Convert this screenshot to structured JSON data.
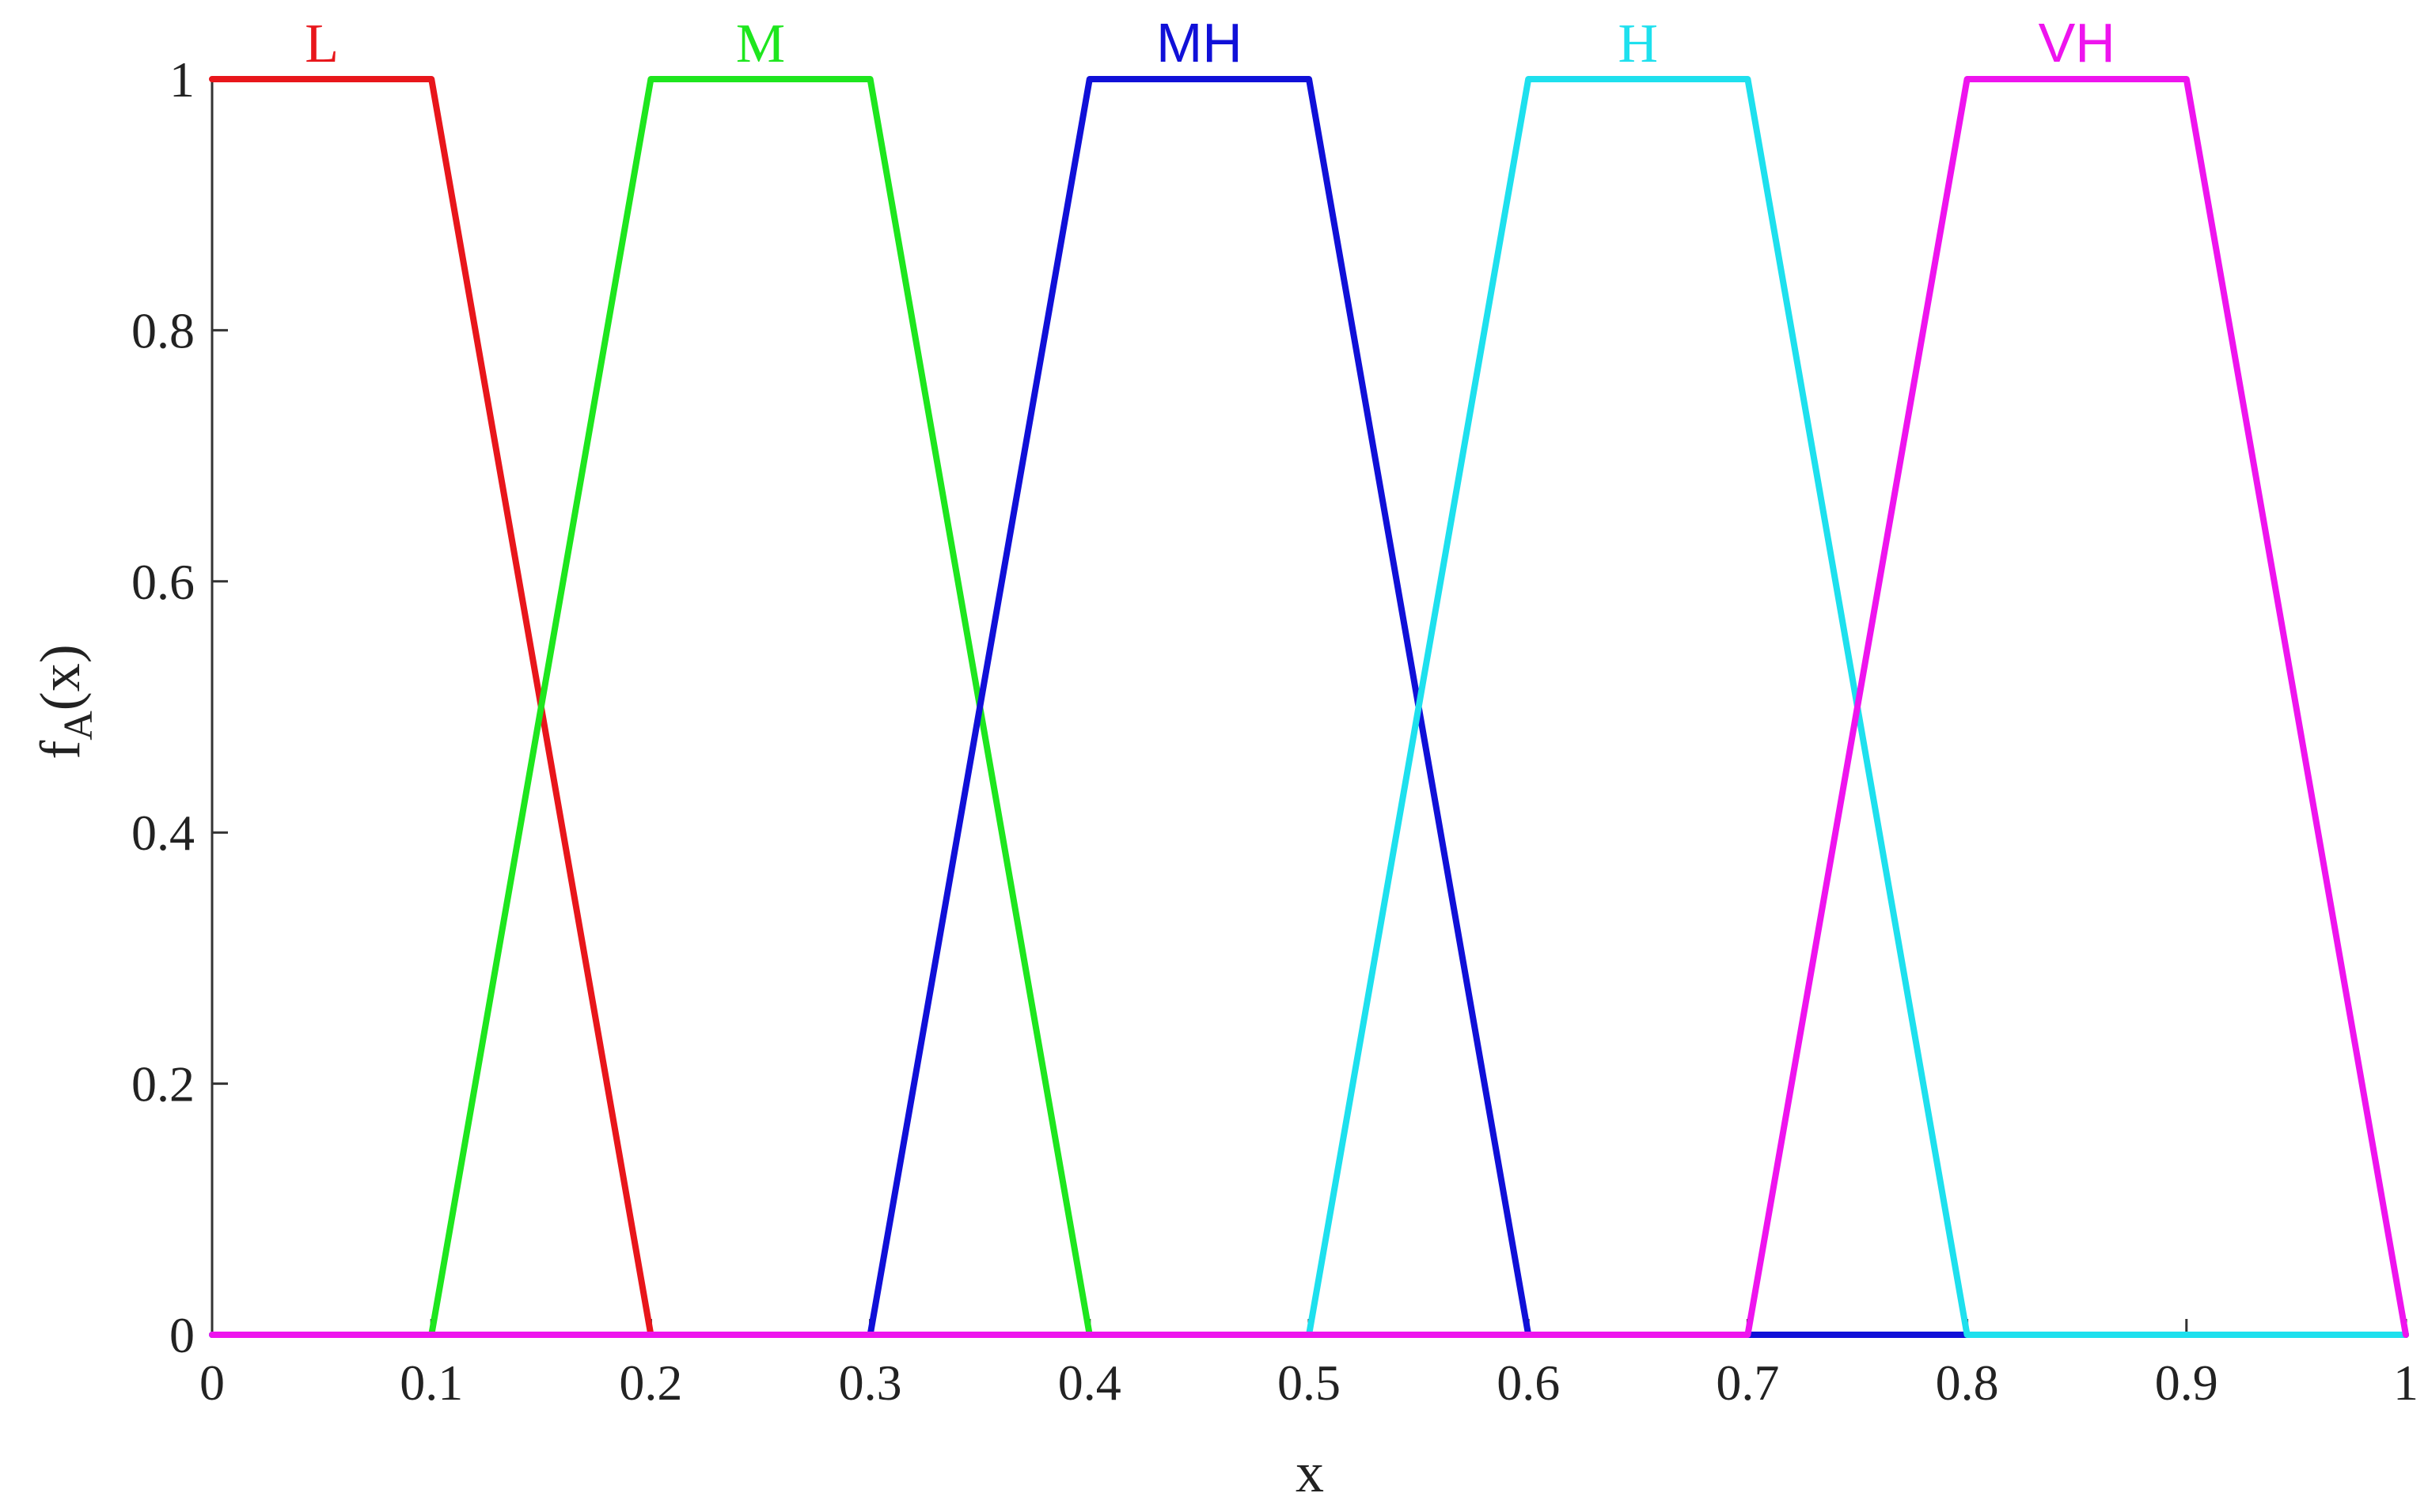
{
  "chart_data": {
    "type": "line",
    "xlabel": "x",
    "ylabel": {
      "main": "f",
      "sub": "A",
      "suffix": "(x)"
    },
    "xlim": [
      0,
      1
    ],
    "ylim": [
      0,
      1
    ],
    "xticks": [
      0,
      0.1,
      0.2,
      0.3,
      0.4,
      0.5,
      0.6,
      0.7,
      0.8,
      0.9,
      1
    ],
    "xtick_labels": [
      "0",
      "0.1",
      "0.2",
      "0.3",
      "0.4",
      "0.5",
      "0.6",
      "0.7",
      "0.8",
      "0.9",
      "1"
    ],
    "yticks": [
      0,
      0.2,
      0.4,
      0.6,
      0.8,
      1
    ],
    "ytick_labels": [
      "0",
      "0.2",
      "0.4",
      "0.6",
      "0.8",
      "1"
    ],
    "grid": false,
    "series": [
      {
        "name": "L",
        "color": "#e8161b",
        "x": [
          0,
          0.1,
          0.2,
          1
        ],
        "y": [
          1,
          1,
          0,
          0
        ]
      },
      {
        "name": "M",
        "color": "#1ee61e",
        "x": [
          0,
          0.1,
          0.2,
          0.3,
          0.4,
          1
        ],
        "y": [
          0,
          0,
          1,
          1,
          0,
          0
        ]
      },
      {
        "name": "MH",
        "color": "#1010d8",
        "x": [
          0,
          0.3,
          0.4,
          0.5,
          0.6,
          1
        ],
        "y": [
          0,
          0,
          1,
          1,
          0,
          0
        ]
      },
      {
        "name": "H",
        "color": "#1ee0ee",
        "x": [
          0,
          0.5,
          0.6,
          0.7,
          0.8,
          1
        ],
        "y": [
          0,
          0,
          1,
          1,
          0,
          0
        ]
      },
      {
        "name": "VH",
        "color": "#ee14ee",
        "x": [
          0,
          0.7,
          0.8,
          0.9,
          1
        ],
        "y": [
          0,
          0,
          1,
          1,
          0
        ]
      }
    ]
  }
}
